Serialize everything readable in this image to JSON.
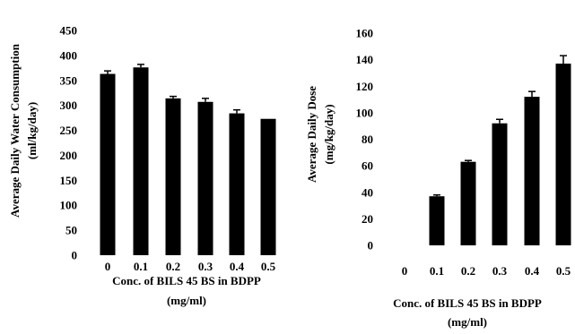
{
  "chart_data": [
    {
      "type": "bar",
      "categories": [
        "0",
        "0.1",
        "0.2",
        "0.3",
        "0.4",
        "0.5"
      ],
      "values": [
        363,
        376,
        314,
        307,
        284,
        273
      ],
      "errors": [
        6,
        6,
        4,
        7,
        7,
        0
      ],
      "ylim": [
        0,
        450
      ],
      "yticks": [
        "0",
        "50",
        "100",
        "150",
        "200",
        "250",
        "300",
        "350",
        "400",
        "450"
      ],
      "ylabel": [
        "Average Daily Water Consumption",
        "(ml/kg/day)"
      ],
      "xlabel": [
        "Conc. of BILS 45 BS in BDPP",
        "(mg/ml)"
      ],
      "grid": false,
      "bar_color": "#000000"
    },
    {
      "type": "bar",
      "categories": [
        "0",
        "0.1",
        "0.2",
        "0.3",
        "0.4",
        "0.5"
      ],
      "values": [
        0,
        37,
        63,
        92,
        112,
        137
      ],
      "errors": [
        0,
        1,
        1,
        3,
        4,
        6
      ],
      "ylim": [
        0,
        160
      ],
      "yticks": [
        "0",
        "20",
        "40",
        "60",
        "80",
        "100",
        "120",
        "140",
        "160"
      ],
      "ylabel": [
        "Average Daily Dose",
        "(mg/kg/day)"
      ],
      "xlabel": [
        "Conc. of BILS 45 BS in BDPP",
        "(mg/ml)"
      ],
      "grid": false,
      "bar_color": "#000000"
    }
  ]
}
